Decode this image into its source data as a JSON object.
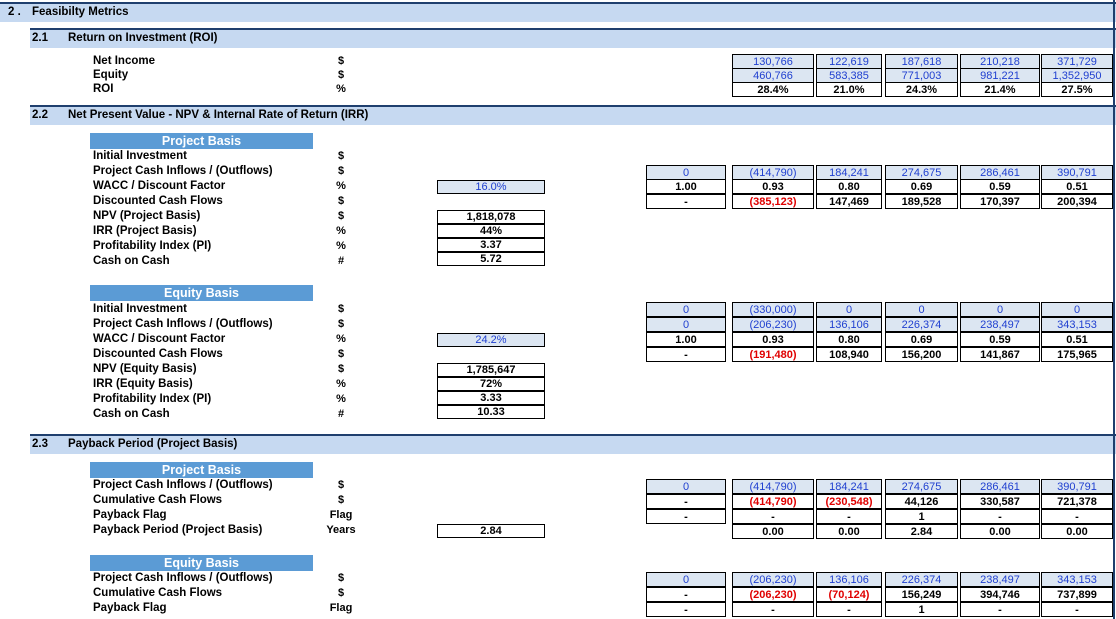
{
  "section2": {
    "number": "2 .",
    "title": "Feasibilty Metrics"
  },
  "roi": {
    "number": "2.1",
    "title": "Return on Investment (ROI)",
    "rows": [
      {
        "label": "Net Income",
        "unit": "$",
        "values": [
          "130,766",
          "122,619",
          "187,618",
          "210,218",
          "371,729"
        ]
      },
      {
        "label": "Equity",
        "unit": "$",
        "values": [
          "460,766",
          "583,385",
          "771,003",
          "981,221",
          "1,352,950"
        ]
      },
      {
        "label": "ROI",
        "unit": "%",
        "values": [
          "28.4%",
          "21.0%",
          "24.3%",
          "21.4%",
          "27.5%"
        ]
      }
    ]
  },
  "npv": {
    "number": "2.2",
    "title": "Net Present Value - NPV & Internal Rate of Return (IRR)",
    "project": {
      "header": "Project Basis",
      "labels": [
        "Initial Investment",
        "Project Cash Inflows / (Outflows)",
        "WACC / Discount Factor",
        "Discounted Cash Flows",
        "NPV (Project Basis)",
        "IRR (Project Basis)",
        "Profitability Index (PI)",
        "Cash on Cash"
      ],
      "units": [
        "$",
        "$",
        "%",
        "$",
        "$",
        "%",
        "%",
        "#"
      ],
      "wacc": "16.0%",
      "npv": "1,818,078",
      "irr": "44%",
      "pi": "3.37",
      "coc": "5.72",
      "grid": [
        [
          "0",
          "(414,790)",
          "184,241",
          "274,675",
          "286,461",
          "390,791"
        ],
        [
          "1.00",
          "0.93",
          "0.80",
          "0.69",
          "0.59",
          "0.51"
        ],
        [
          "-",
          "(385,123)",
          "147,469",
          "189,528",
          "170,397",
          "200,394"
        ]
      ]
    },
    "equity": {
      "header": "Equity Basis",
      "labels": [
        "Initial Investment",
        "Project Cash Inflows / (Outflows)",
        "WACC / Discount Factor",
        "Discounted Cash Flows",
        "NPV (Equity Basis)",
        "IRR (Equity Basis)",
        "Profitability Index (PI)",
        "Cash on Cash"
      ],
      "units": [
        "$",
        "$",
        "%",
        "$",
        "$",
        "%",
        "%",
        "#"
      ],
      "wacc": "24.2%",
      "npv": "1,785,647",
      "irr": "72%",
      "pi": "3.33",
      "coc": "10.33",
      "grid": [
        [
          "0",
          "(330,000)",
          "0",
          "0",
          "0",
          "0"
        ],
        [
          "0",
          "(206,230)",
          "136,106",
          "226,374",
          "238,497",
          "343,153"
        ],
        [
          "1.00",
          "0.93",
          "0.80",
          "0.69",
          "0.59",
          "0.51"
        ],
        [
          "-",
          "(191,480)",
          "108,940",
          "156,200",
          "141,867",
          "175,965"
        ]
      ]
    }
  },
  "payback": {
    "number": "2.3",
    "title": "Payback Period (Project Basis)",
    "project": {
      "header": "Project Basis",
      "labels": [
        "Project Cash Inflows / (Outflows)",
        "Cumulative Cash Flows",
        "Payback Flag",
        "Payback Period (Project Basis)"
      ],
      "units": [
        "$",
        "$",
        "Flag",
        "Years"
      ],
      "period": "2.84",
      "grid": [
        [
          "0",
          "(414,790)",
          "184,241",
          "274,675",
          "286,461",
          "390,791"
        ],
        [
          "-",
          "(414,790)",
          "(230,548)",
          "44,126",
          "330,587",
          "721,378"
        ],
        [
          "-",
          "-",
          "-",
          "1",
          "-",
          "-"
        ],
        [
          "",
          "0.00",
          "0.00",
          "2.84",
          "0.00",
          "0.00"
        ]
      ]
    },
    "equity": {
      "header": "Equity Basis",
      "labels": [
        "Project Cash Inflows / (Outflows)",
        "Cumulative Cash Flows",
        "Payback Flag"
      ],
      "units": [
        "$",
        "$",
        "Flag"
      ],
      "grid": [
        [
          "0",
          "(206,230)",
          "136,106",
          "226,374",
          "238,497",
          "343,153"
        ],
        [
          "-",
          "(206,230)",
          "(70,124)",
          "156,249",
          "394,746",
          "737,899"
        ],
        [
          "-",
          "-",
          "-",
          "1",
          "-",
          "-"
        ]
      ]
    }
  },
  "colors": {
    "header_fill": "#c6d9f1",
    "header_border": "#1f3f6e",
    "basis_fill": "#5b9bd5",
    "input_fill": "#dce6f2",
    "input_text": "#1f3fd0",
    "negative": "#e00000"
  }
}
